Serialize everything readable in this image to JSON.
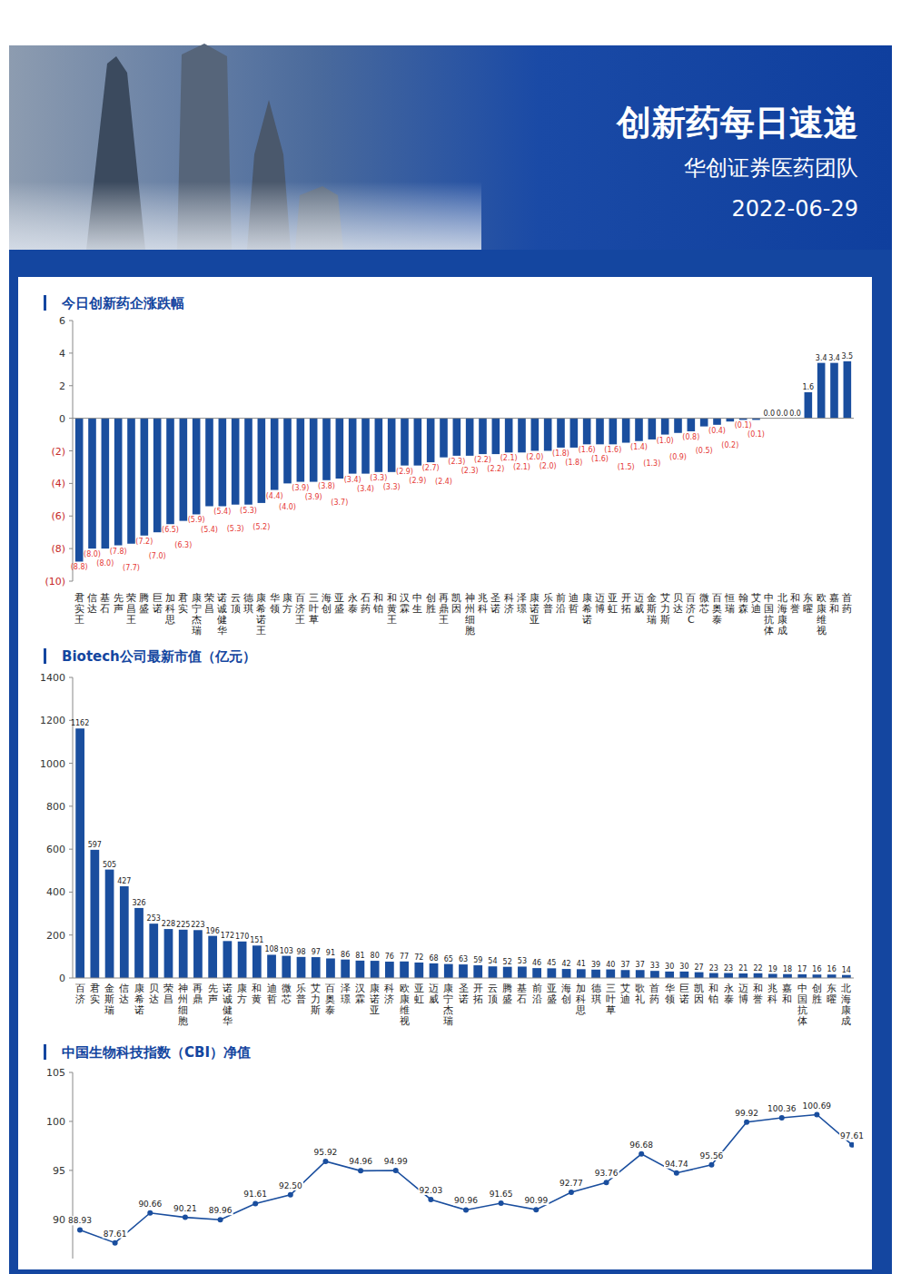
{
  "header": {
    "title": "创新药每日速递",
    "subtitle": "华创证券医药团队",
    "date": "2022-06-29"
  },
  "chart_data": [
    {
      "type": "bar",
      "title": "今日创新药企涨跌幅",
      "categories": [
        "君实王",
        "信达",
        "基石",
        "先声",
        "荣昌王",
        "腾盛",
        "巨诺",
        "加科思",
        "君实",
        "康宁杰瑞",
        "荣昌",
        "诺诚健华",
        "云顶",
        "德琪",
        "康希诺王",
        "华领",
        "康方",
        "百济王",
        "三叶草",
        "海创",
        "亚盛",
        "永泰",
        "石药",
        "和铂",
        "和黄王",
        "汉霖",
        "中生",
        "创胜",
        "再鼎王",
        "凯因",
        "神州细胞",
        "兆科",
        "圣诺",
        "科济",
        "泽璟",
        "康诺亚",
        "乐普",
        "前沿",
        "迪哲",
        "康希诺",
        "迈博",
        "亚虹",
        "开拓",
        "迈威",
        "金斯瑞",
        "艾力斯",
        "贝达",
        "百济C",
        "微芯",
        "百奥泰",
        "恒瑞",
        "翰森",
        "艾迪",
        "中国抗体",
        "北海康成",
        "和誉",
        "东曜",
        "欧康维视",
        "嘉和",
        "首药"
      ],
      "values": [
        -8.8,
        -8.0,
        -8.0,
        -7.8,
        -7.7,
        -7.2,
        -7.0,
        -6.5,
        -6.3,
        -5.9,
        -5.4,
        -5.4,
        -5.3,
        -5.3,
        -5.2,
        -4.4,
        -4.0,
        -3.9,
        -3.9,
        -3.8,
        -3.7,
        -3.4,
        -3.4,
        -3.3,
        -3.3,
        -2.9,
        -2.9,
        -2.7,
        -2.4,
        -2.3,
        -2.3,
        -2.2,
        -2.2,
        -2.1,
        -2.1,
        -2.0,
        -2.0,
        -1.8,
        -1.8,
        -1.6,
        -1.6,
        -1.6,
        -1.5,
        -1.4,
        -1.3,
        -1.0,
        -0.9,
        -0.8,
        -0.5,
        -0.4,
        -0.2,
        -0.1,
        -0.1,
        0.0,
        0.0,
        0.0,
        1.6,
        3.4,
        3.4,
        3.5
      ],
      "value_labels": [
        "(8.8)",
        "(8.0)",
        "(8.0)",
        "(7.8)",
        "(7.7)",
        "(7.2)",
        "(7.0)",
        "(6.5)",
        "(6.3)",
        "(5.9)",
        "(5.4)",
        "(5.4)",
        "(5.3)",
        "(5.3)",
        "(5.2)",
        "(4.4)",
        "(4.0)",
        "(3.9)",
        "(3.9)",
        "(3.8)",
        "(3.7)",
        "(3.4)",
        "(3.4)",
        "(3.3)",
        "(3.3)",
        "(2.9)",
        "(2.9)",
        "(2.7)",
        "(2.4)",
        "(2.3)",
        "(2.3)",
        "(2.2)",
        "(2.2)",
        "(2.1)",
        "(2.1)",
        "(2.0)",
        "(2.0)",
        "(1.8)",
        "(1.8)",
        "(1.6)",
        "(1.6)",
        "(1.6)",
        "(1.5)",
        "(1.4)",
        "(1.3)",
        "(1.0)",
        "(0.9)",
        "(0.8)",
        "(0.5)",
        "(0.4)",
        "(0.2)",
        "(0.1)",
        "(0.1)",
        "0.0",
        "0.0",
        "0.0",
        "1.6",
        "3.4",
        "3.4",
        "3.5"
      ],
      "color": "#1a4e9e",
      "data_labels": true,
      "grid": false,
      "ylim": [
        -10,
        6
      ],
      "yticks": [
        {
          "value": -10,
          "label": "(10)"
        },
        {
          "value": -8,
          "label": "(8)"
        },
        {
          "value": -6,
          "label": "(6)"
        },
        {
          "value": -4,
          "label": "(4)"
        },
        {
          "value": -2,
          "label": "(2)"
        },
        0,
        2,
        4,
        6
      ]
    },
    {
      "type": "bar",
      "title": "Biotech公司最新市值（亿元）",
      "categories": [
        "百济",
        "君实",
        "金斯瑞",
        "信达",
        "康希诺",
        "贝达",
        "荣昌",
        "神州细胞",
        "再鼎",
        "先声",
        "诺诚健华",
        "康方",
        "和黄",
        "迪哲",
        "微芯",
        "乐普",
        "艾力斯",
        "百奥泰",
        "泽璟",
        "汉霖",
        "康诺亚",
        "科济",
        "欧康维视",
        "亚虹",
        "迈威",
        "康宁杰瑞",
        "圣诺",
        "开拓",
        "云顶",
        "腾盛",
        "基石",
        "前沿",
        "亚盛",
        "海创",
        "加科思",
        "德琪",
        "三叶草",
        "艾迪",
        "歌礼",
        "首药",
        "华领",
        "巨诺",
        "凯因",
        "和铂",
        "永泰",
        "迈博",
        "和誉",
        "兆科",
        "嘉和",
        "中国抗体",
        "创胜",
        "东曜",
        "北海康成"
      ],
      "values": [
        1162,
        597,
        505,
        427,
        326,
        253,
        228,
        225,
        223,
        196,
        172,
        170,
        151,
        108,
        103,
        98,
        97,
        91,
        86,
        81,
        80,
        76,
        77,
        72,
        68,
        65,
        63,
        59,
        54,
        52,
        53,
        46,
        45,
        42,
        41,
        39,
        40,
        37,
        37,
        33,
        30,
        30,
        27,
        23,
        23,
        21,
        22,
        19,
        18,
        17,
        16,
        16,
        14
      ],
      "color": "#1a4e9e",
      "data_labels": true,
      "grid": false,
      "ylim": [
        0,
        1400
      ],
      "yticks": [
        0,
        200,
        400,
        600,
        800,
        1000,
        1200,
        1400
      ]
    },
    {
      "type": "line",
      "title": "中国生物科技指数（CBI）净值",
      "categories": [
        null,
        null,
        null,
        null,
        null,
        null,
        null,
        null,
        null,
        null,
        null,
        null,
        null,
        null,
        null,
        null,
        null,
        null,
        null,
        null,
        null,
        null,
        null
      ],
      "values": [
        88.93,
        87.61,
        90.66,
        90.21,
        89.96,
        91.61,
        92.5,
        95.92,
        94.96,
        94.99,
        92.03,
        90.96,
        91.65,
        90.99,
        92.77,
        93.76,
        96.68,
        94.74,
        95.56,
        99.92,
        100.36,
        100.69,
        97.61
      ],
      "value_labels": [
        "88.93",
        "87.61",
        "90.66",
        "90.21",
        "89.96",
        "91.61",
        "92.50",
        "95.92",
        "94.96",
        "94.99",
        "92.03",
        "90.96",
        "91.65",
        "90.99",
        "92.77",
        "93.76",
        "96.68",
        "94.74",
        "95.56",
        "99.92",
        "100.36",
        "100.69",
        "97.61"
      ],
      "color": "#1a4e9e",
      "marker": "circle",
      "line_style": "solid",
      "data_labels": true,
      "grid": false,
      "tick_labels": "y",
      "ylim": [
        86,
        105
      ],
      "yticks": [
        90,
        95,
        100,
        105
      ]
    }
  ]
}
